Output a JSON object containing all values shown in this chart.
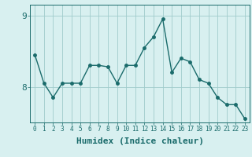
{
  "x": [
    0,
    1,
    2,
    3,
    4,
    5,
    6,
    7,
    8,
    9,
    10,
    11,
    12,
    13,
    14,
    15,
    16,
    17,
    18,
    19,
    20,
    21,
    22,
    23
  ],
  "y": [
    8.45,
    8.05,
    7.85,
    8.05,
    8.05,
    8.05,
    8.3,
    8.3,
    8.28,
    8.05,
    8.3,
    8.3,
    8.55,
    8.7,
    8.95,
    8.2,
    8.4,
    8.35,
    8.1,
    8.05,
    7.85,
    7.75,
    7.75,
    7.55
  ],
  "line_color": "#1a6b6b",
  "marker": "o",
  "marker_size": 2.5,
  "bg_color": "#d8f0f0",
  "grid_color": "#a0cccc",
  "xlabel": "Humidex (Indice chaleur)",
  "ylim": [
    7.5,
    9.15
  ],
  "yticks": [
    8,
    9
  ],
  "xlim": [
    -0.5,
    23.5
  ],
  "xlabel_fontsize": 8,
  "ytick_fontsize": 8,
  "xtick_fontsize": 5.5
}
